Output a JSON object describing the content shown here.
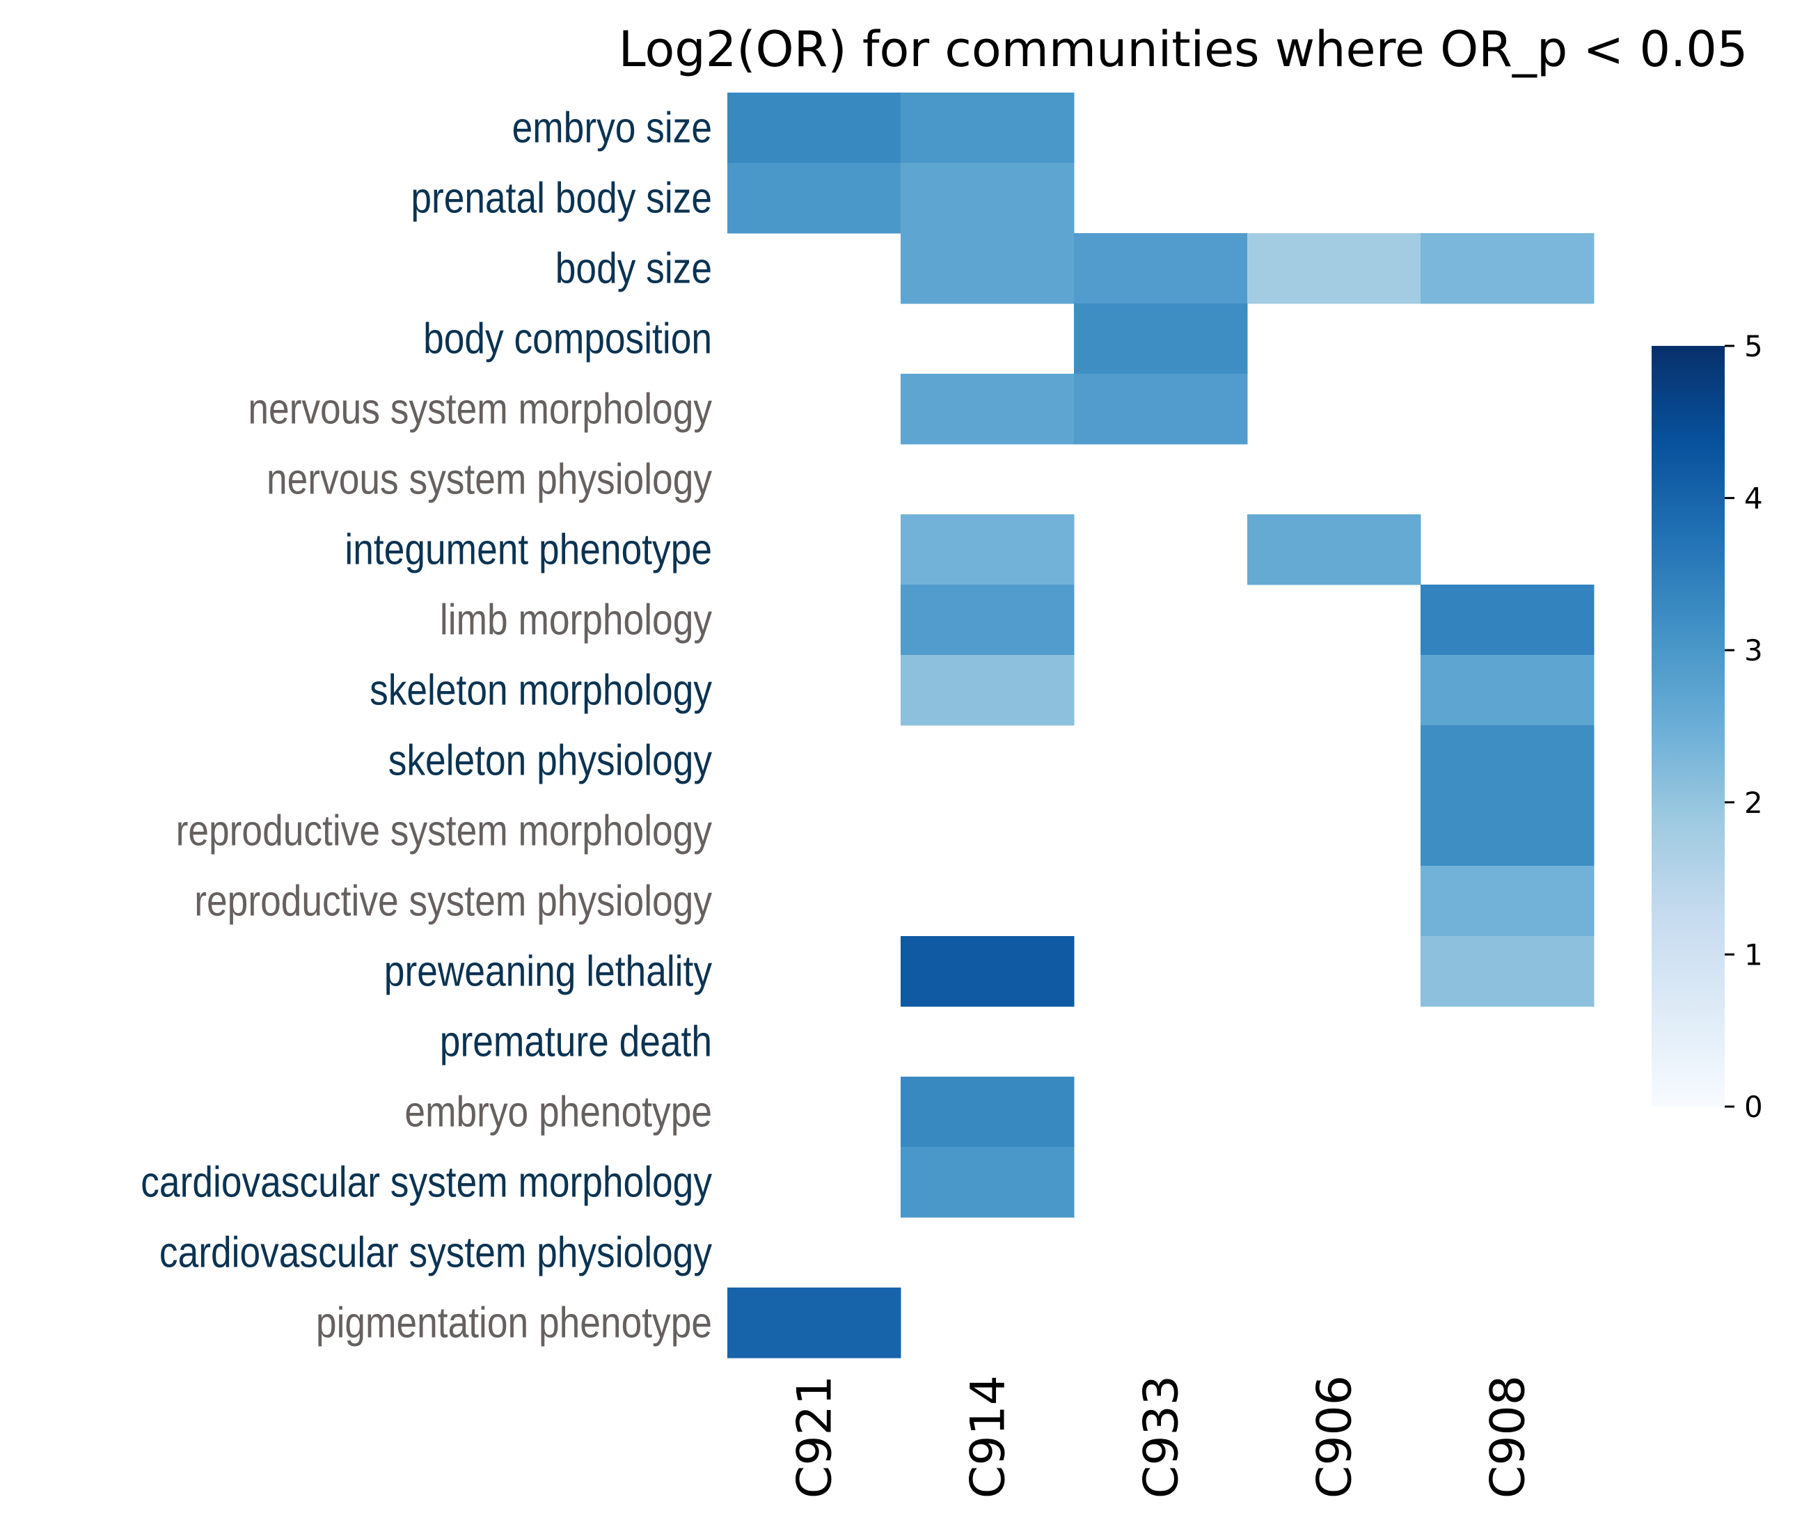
{
  "chart_data": {
    "type": "heatmap",
    "title": "Log2(OR) for communities where OR_p < 0.05",
    "xlabel": "",
    "ylabel": "",
    "columns": [
      "C921",
      "C914",
      "C933",
      "C906",
      "C908"
    ],
    "rows": [
      {
        "label": "embryo size",
        "color": "#0b3352"
      },
      {
        "label": "prenatal body size",
        "color": "#0b3352"
      },
      {
        "label": "body size",
        "color": "#0b3352"
      },
      {
        "label": "body composition",
        "color": "#0b3352"
      },
      {
        "label": "nervous system morphology",
        "color": "#66605f"
      },
      {
        "label": "nervous system physiology",
        "color": "#66605f"
      },
      {
        "label": "integument phenotype",
        "color": "#0b3352"
      },
      {
        "label": "limb morphology",
        "color": "#66605f"
      },
      {
        "label": "skeleton morphology",
        "color": "#0b3352"
      },
      {
        "label": "skeleton physiology",
        "color": "#0b3352"
      },
      {
        "label": "reproductive system morphology",
        "color": "#66605f"
      },
      {
        "label": "reproductive system physiology",
        "color": "#66605f"
      },
      {
        "label": "preweaning lethality",
        "color": "#0b3352"
      },
      {
        "label": "premature death",
        "color": "#0b3352"
      },
      {
        "label": "embryo phenotype",
        "color": "#66605f"
      },
      {
        "label": "cardiovascular system morphology",
        "color": "#0b3352"
      },
      {
        "label": "cardiovascular system physiology",
        "color": "#0b3352"
      },
      {
        "label": "pigmentation phenotype",
        "color": "#66605f"
      }
    ],
    "values": [
      [
        3.3,
        3.0,
        null,
        null,
        null
      ],
      [
        3.0,
        2.7,
        null,
        null,
        null
      ],
      [
        null,
        2.7,
        2.9,
        1.8,
        2.3
      ],
      [
        null,
        null,
        3.2,
        null,
        null
      ],
      [
        null,
        2.7,
        2.9,
        null,
        null
      ],
      [
        null,
        null,
        null,
        null,
        null
      ],
      [
        null,
        2.4,
        null,
        2.6,
        null
      ],
      [
        null,
        2.9,
        null,
        null,
        3.4
      ],
      [
        null,
        2.1,
        null,
        null,
        2.7
      ],
      [
        null,
        null,
        null,
        null,
        3.2
      ],
      [
        null,
        null,
        null,
        null,
        3.2
      ],
      [
        null,
        null,
        null,
        null,
        2.4
      ],
      [
        null,
        4.2,
        null,
        null,
        2.1
      ],
      [
        null,
        null,
        null,
        null,
        null
      ],
      [
        null,
        3.3,
        null,
        null,
        null
      ],
      [
        null,
        3.0,
        null,
        null,
        null
      ],
      [
        null,
        null,
        null,
        null,
        null
      ],
      [
        4.0,
        null,
        null,
        null,
        null
      ]
    ],
    "colorbar": {
      "range": [
        0,
        5
      ],
      "ticks": [
        "0",
        "1",
        "2",
        "3",
        "4",
        "5"
      ],
      "colormap": "Blues"
    },
    "grid": false,
    "legend": "right"
  }
}
